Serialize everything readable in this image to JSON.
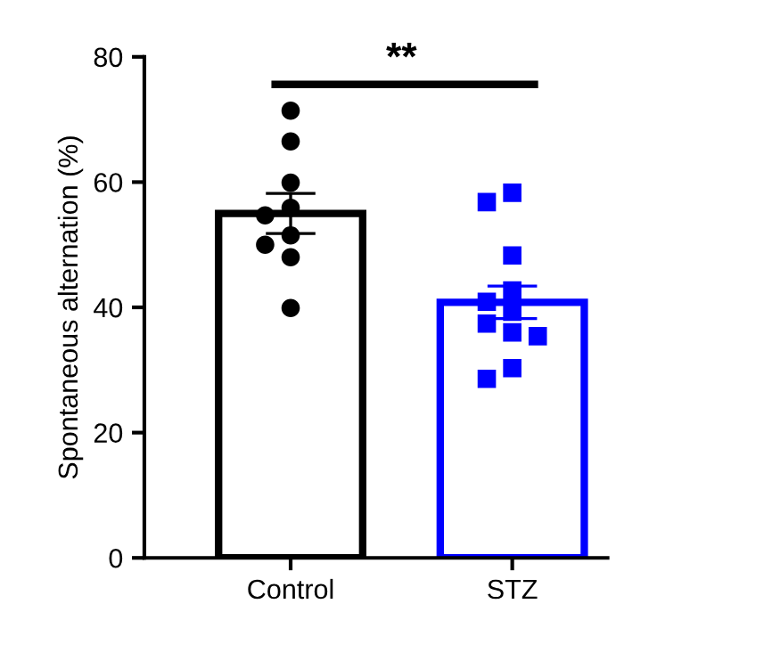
{
  "chart_data": {
    "type": "bar",
    "ylabel": "Spontaneous alternation (%)",
    "categories": [
      "Control",
      "STZ"
    ],
    "ylim": [
      0,
      80
    ],
    "yticks": [
      0,
      20,
      40,
      60,
      80
    ],
    "grid": false,
    "legend": false,
    "series": [
      {
        "colors": [
          "#000000",
          "#0000ff"
        ],
        "values": [
          55.0,
          40.8
        ],
        "errors": [
          3.2,
          2.6
        ]
      },
      {
        "type": "scatter",
        "marker": "circle",
        "color": "#000000",
        "x": [
          "Control",
          "Control",
          "Control",
          "Control",
          "Control",
          "Control",
          "Control",
          "Control",
          "Control"
        ],
        "values": [
          71.4,
          66.5,
          59.9,
          55.9,
          54.7,
          51.5,
          50.0,
          48.0,
          39.9
        ]
      },
      {
        "type": "scatter",
        "marker": "square",
        "color": "#0000ff",
        "x": [
          "STZ",
          "STZ",
          "STZ",
          "STZ",
          "STZ",
          "STZ",
          "STZ",
          "STZ",
          "STZ",
          "STZ",
          "STZ"
        ],
        "values": [
          58.3,
          56.8,
          48.3,
          42.7,
          40.9,
          39.3,
          37.4,
          36.0,
          35.4,
          30.3,
          28.6
        ]
      }
    ],
    "annotations": [
      "**"
    ]
  }
}
